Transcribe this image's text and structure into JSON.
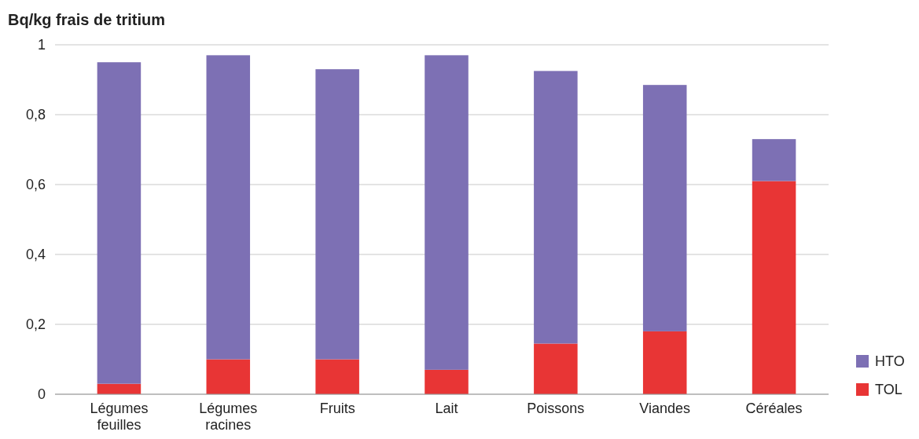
{
  "chart_data": {
    "type": "bar",
    "stacked": true,
    "ylabel": "Bq/kg frais de tritium",
    "categories": [
      "Légumes feuilles",
      "Légumes racines",
      "Fruits",
      "Lait",
      "Poissons",
      "Viandes",
      "Céréales"
    ],
    "series": [
      {
        "name": "TOL",
        "color": "#e83535",
        "values": [
          0.03,
          0.1,
          0.1,
          0.07,
          0.145,
          0.18,
          0.61
        ]
      },
      {
        "name": "HTO",
        "color": "#7d70b4",
        "values": [
          0.92,
          0.87,
          0.83,
          0.9,
          0.78,
          0.705,
          0.12
        ]
      }
    ],
    "ylim": [
      0,
      1
    ],
    "yticks": [
      0,
      {
        "value": 0.2,
        "label": "0,2"
      },
      {
        "value": 0.4,
        "label": "0,4"
      },
      {
        "value": 0.6,
        "label": "0,6"
      },
      {
        "value": 0.8,
        "label": "0,8"
      },
      1
    ],
    "grid": "y",
    "legend": "bottom right"
  }
}
